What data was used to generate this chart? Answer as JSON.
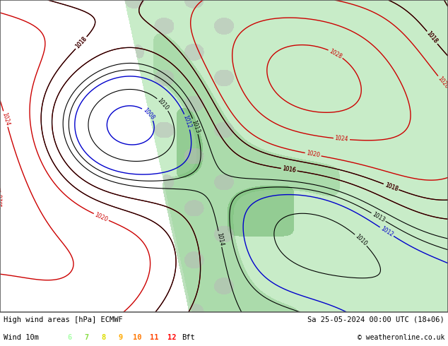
{
  "title_left": "High wind areas [hPa] ECMWF",
  "title_right": "Sa 25-05-2024 00:00 UTC (18+06)",
  "subtitle_left": "Wind 10m",
  "copyright": "© weatheronline.co.uk",
  "bft_labels": [
    "6",
    "7",
    "8",
    "9",
    "10",
    "11",
    "12",
    "Bft"
  ],
  "bft_colors": [
    "#aaffaa",
    "#88dd44",
    "#dddd00",
    "#ffaa00",
    "#ff7700",
    "#ff4400",
    "#ff0000",
    "#000000"
  ],
  "bg_color": "#ffffff",
  "sea_color": "#ffffff",
  "land_light": "#c8ecc8",
  "land_mid": "#a0d4a0",
  "land_dark": "#70b870",
  "fig_width": 6.34,
  "fig_height": 4.9,
  "dpi": 100
}
